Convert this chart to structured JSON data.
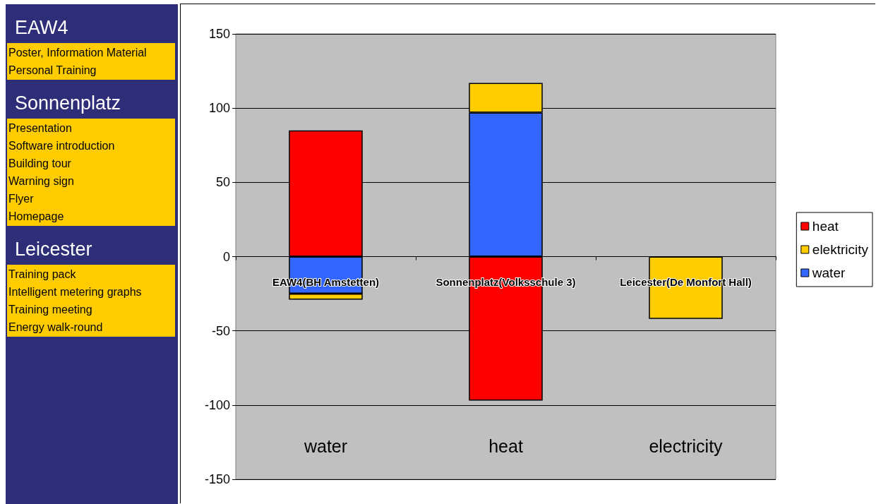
{
  "chart_data": [
    {
      "type": "other",
      "categories": [
        "EAW4",
        "Sonnenplatz",
        "Leicester"
      ],
      "annotations": [
        {
          "text": "Poster, Information Material",
          "x": "EAW4"
        },
        {
          "text": "Personal Training",
          "x": "EAW4"
        },
        {
          "text": "Presentation",
          "x": "Sonnenplatz"
        },
        {
          "text": "Software introduction",
          "x": "Sonnenplatz"
        },
        {
          "text": "Building tour",
          "x": "Sonnenplatz"
        },
        {
          "text": "Warning sign",
          "x": "Sonnenplatz"
        },
        {
          "text": "Flyer",
          "x": "Sonnenplatz"
        },
        {
          "text": "Homepage",
          "x": "Sonnenplatz"
        },
        {
          "text": "Training pack",
          "x": "Leicester"
        },
        {
          "text": "Intelligent metering graphs",
          "x": "Leicester"
        },
        {
          "text": "Training meeting",
          "x": "Leicester"
        },
        {
          "text": "Energy walk-round",
          "x": "Leicester"
        }
      ]
    },
    {
      "type": "bar",
      "stacked": true,
      "categories": [
        "EAW4(BH Amstetten)",
        "Sonnenplatz(Volksschule 3)",
        "Leicester(De Monfort Hall)"
      ],
      "series": [
        {
          "name": "water",
          "color": "#3366ff",
          "values": [
            -25,
            97,
            null
          ]
        },
        {
          "name": "elektricity",
          "color": "#ffcc00",
          "values": [
            -4,
            20,
            -42
          ]
        },
        {
          "name": "heat",
          "color": "#ff0000",
          "values": [
            85,
            -97,
            null
          ]
        }
      ],
      "ylim": [
        -150,
        150
      ],
      "yticks": [
        -150,
        -100,
        -50,
        0,
        50,
        100,
        150
      ],
      "grid": "y",
      "legend": "right",
      "annotations": [
        "water",
        "heat",
        "electricity"
      ]
    }
  ]
}
